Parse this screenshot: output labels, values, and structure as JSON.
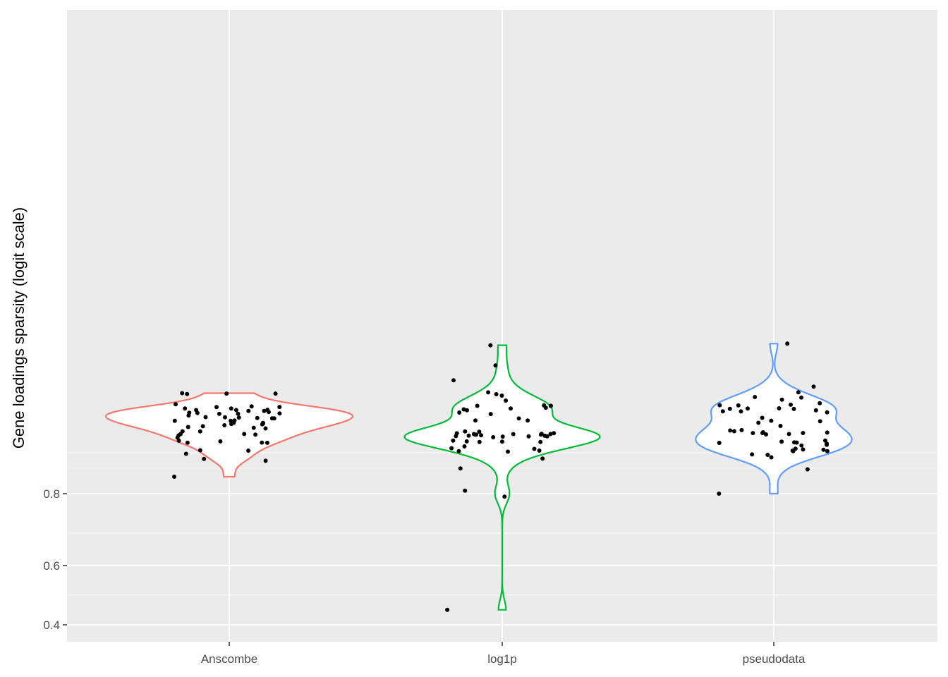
{
  "chart_data": {
    "type": "violin",
    "ylabel": "Gene loadings sparsity (logit scale)",
    "xlabel": "",
    "y_scale": "logit",
    "y_ticks": [
      0.4,
      0.6,
      0.8
    ],
    "y_tick_labels": [
      "0.4",
      "0.6",
      "0.8"
    ],
    "grid": true,
    "legend": "none",
    "categories": [
      "Anscombe",
      "log1p",
      "pseudodata"
    ],
    "series": [
      {
        "category": "Anscombe",
        "color": "#F8766D",
        "points": [
          0.8345,
          0.8785,
          0.889,
          0.8893,
          0.9002,
          0.9077,
          0.9115,
          0.9133,
          0.9158,
          0.9179,
          0.9119,
          0.907,
          0.9086,
          0.9188,
          0.918,
          0.9154,
          0.9224,
          0.9208,
          0.9276,
          0.9235,
          0.9275,
          0.9253,
          0.9313,
          0.9253,
          0.9288,
          0.9229,
          0.9261,
          0.9397,
          0.9404,
          0.9401,
          0.9401,
          0.9289,
          0.919,
          0.9123,
          0.9153,
          0.9225,
          0.9183,
          0.9242,
          0.9263,
          0.9233,
          0.9261,
          0.9294,
          0.9192,
          0.9132,
          0.9036,
          0.9035,
          0.8996,
          0.8986,
          0.9004,
          0.8909,
          0.8958,
          0.8892,
          0.8918,
          0.878,
          0.8733,
          0.8624,
          0.8653,
          0.9095,
          0.9106
        ]
      },
      {
        "category": "log1p",
        "color": "#00BA38",
        "points": [
          0.45,
          0.7934,
          0.8065,
          0.8496,
          0.866,
          0.878,
          0.8765,
          0.8773,
          0.8841,
          0.8902,
          0.8996,
          0.9031,
          0.8919,
          0.8977,
          0.8987,
          0.8971,
          0.8983,
          0.8975,
          0.9003,
          0.8982,
          0.8995,
          0.8815,
          0.8906,
          0.8806,
          0.8902,
          0.8909,
          0.8996,
          0.9034,
          0.9012,
          0.8975,
          0.8963,
          0.9003,
          0.9014,
          0.9003,
          0.9006,
          0.9157,
          0.9178,
          0.9158,
          0.9299,
          0.9237,
          0.9267,
          0.9299,
          0.9299,
          0.9282,
          0.9303,
          0.9275,
          0.9345,
          0.9223,
          0.9259,
          0.9385,
          0.9396,
          0.941,
          0.9495,
          0.9584,
          0.9681
        ]
      },
      {
        "category": "pseudodata",
        "color": "#619CFF",
        "points": [
          0.8,
          0.8479,
          0.8679,
          0.8717,
          0.8773,
          0.8793,
          0.8723,
          0.878,
          0.8797,
          0.8809,
          0.8772,
          0.8854,
          0.8863,
          0.8905,
          0.8893,
          0.8889,
          0.8879,
          0.8896,
          0.8919,
          0.9004,
          0.8998,
          0.9024,
          0.9021,
          0.9016,
          0.9015,
          0.9016,
          0.9037,
          0.905,
          0.9045,
          0.9098,
          0.9133,
          0.9149,
          0.9155,
          0.9185,
          0.9248,
          0.9258,
          0.9277,
          0.9309,
          0.9249,
          0.9305,
          0.9272,
          0.9303,
          0.9276,
          0.9239,
          0.9271,
          0.9323,
          0.9374,
          0.9369,
          0.9411,
          0.9352,
          0.9452,
          0.9688
        ]
      }
    ]
  }
}
